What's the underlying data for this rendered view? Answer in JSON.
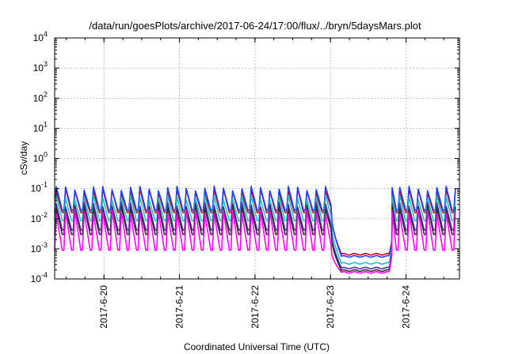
{
  "chart_data": {
    "type": "line",
    "title": "/data/run/goesPlots/archive/2017-06-24/17:00/flux/../bryn/5daysMars.plot",
    "xlabel": "Coordinated Universal Time (UTC)",
    "ylabel": "cSv/day",
    "yscale": "log",
    "grid": true,
    "legend": "none",
    "xlim": [
      "2017-06-19T08:20",
      "2017-06-24T17:00"
    ],
    "ylim": [
      0.0001,
      10000
    ],
    "x_ticks": [
      "2017-6-20",
      "2017-6-21",
      "2017-6-22",
      "2017-6-23",
      "2017-6-24"
    ],
    "y_ticks": [
      {
        "base": "10",
        "exp": "-4"
      },
      {
        "base": "10",
        "exp": "-3"
      },
      {
        "base": "10",
        "exp": "-2"
      },
      {
        "base": "10",
        "exp": "-1"
      },
      {
        "base": "10",
        "exp": "0"
      },
      {
        "base": "10",
        "exp": "1"
      },
      {
        "base": "10",
        "exp": "2"
      },
      {
        "base": "10",
        "exp": "3"
      },
      {
        "base": "10",
        "exp": "4"
      }
    ],
    "sawtooth_period_hours": 2.95,
    "series": [
      {
        "color": "#d40000",
        "peak": 0.1,
        "trough": 0.016,
        "dip_floor": 0.00066,
        "recovery_value": 0.0018
      },
      {
        "color": "#2040ff",
        "peak": 0.12,
        "trough": 0.019,
        "dip_floor": 0.00056,
        "recovery_value": 0.0016
      },
      {
        "color": "#20c0c0",
        "peak": 0.06,
        "trough": 0.0085,
        "dip_floor": 0.00033,
        "recovery_value": 0.0011
      },
      {
        "color": "#5030a0",
        "peak": 0.035,
        "trough": 0.0042,
        "dip_floor": 0.00023,
        "recovery_value": 0.0008
      },
      {
        "color": "#303030",
        "peak": 0.028,
        "trough": 0.003,
        "dip_floor": 0.00019,
        "recovery_value": 0.0007
      },
      {
        "color": "#ff00ff",
        "peak": 0.02,
        "trough": 0.0009,
        "dip_floor": 0.000165,
        "recovery_value": 0.0006
      }
    ],
    "event": {
      "start": "2017-06-23T00:10",
      "floor_reached": "2017-06-23T03:30",
      "end": "2017-06-23T18:50",
      "recovered": "2017-06-23T19:30"
    }
  }
}
